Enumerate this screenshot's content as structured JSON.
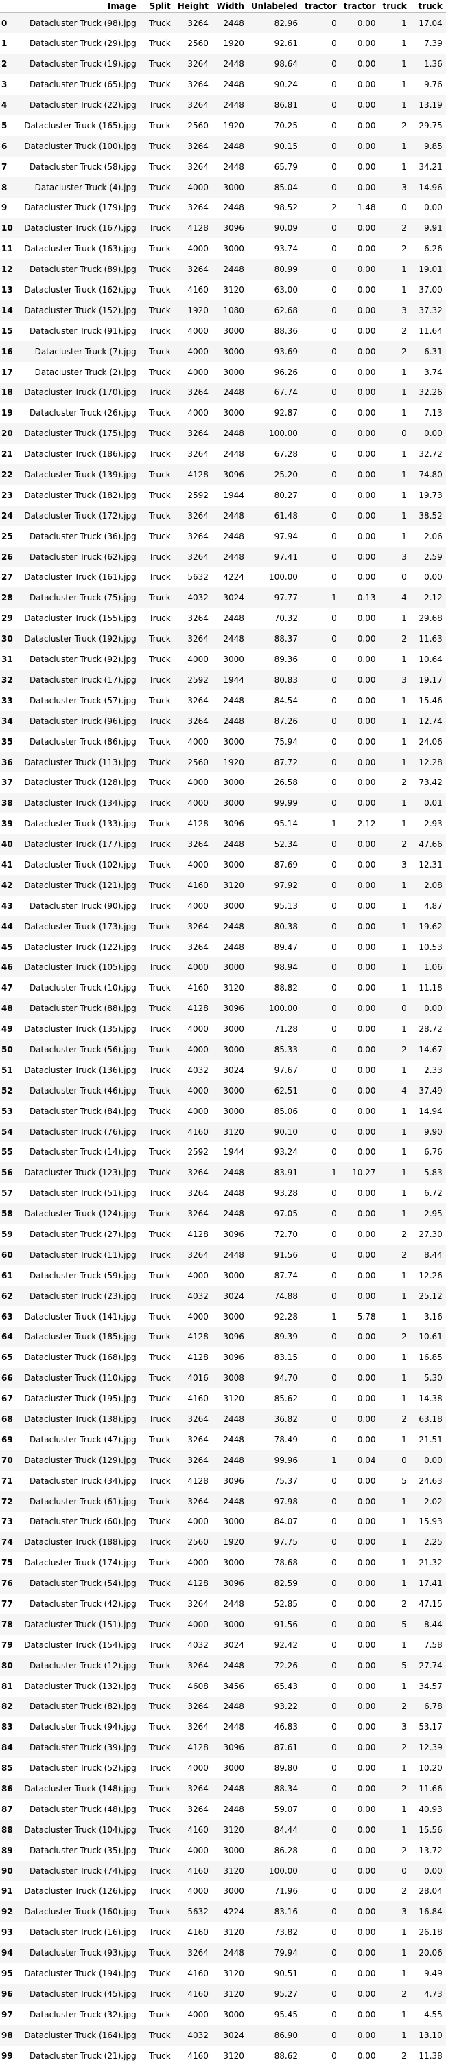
{
  "table": {
    "columns": [
      "",
      "Image",
      "Split",
      "Height",
      "Width",
      "Unlabeled",
      "tractor",
      "tractor",
      "truck",
      "truck"
    ],
    "rows": [
      [
        "0",
        "Datacluster Truck (98).jpg",
        "Truck",
        "3264",
        "2448",
        "82.96",
        "0",
        "0.00",
        "1",
        "17.04"
      ],
      [
        "1",
        "Datacluster Truck (29).jpg",
        "Truck",
        "2560",
        "1920",
        "92.61",
        "0",
        "0.00",
        "1",
        "7.39"
      ],
      [
        "2",
        "Datacluster Truck (19).jpg",
        "Truck",
        "3264",
        "2448",
        "98.64",
        "0",
        "0.00",
        "1",
        "1.36"
      ],
      [
        "3",
        "Datacluster Truck (65).jpg",
        "Truck",
        "3264",
        "2448",
        "90.24",
        "0",
        "0.00",
        "1",
        "9.76"
      ],
      [
        "4",
        "Datacluster Truck (22).jpg",
        "Truck",
        "3264",
        "2448",
        "86.81",
        "0",
        "0.00",
        "1",
        "13.19"
      ],
      [
        "5",
        "Datacluster Truck (165).jpg",
        "Truck",
        "2560",
        "1920",
        "70.25",
        "0",
        "0.00",
        "2",
        "29.75"
      ],
      [
        "6",
        "Datacluster Truck (100).jpg",
        "Truck",
        "3264",
        "2448",
        "90.15",
        "0",
        "0.00",
        "1",
        "9.85"
      ],
      [
        "7",
        "Datacluster Truck (58).jpg",
        "Truck",
        "3264",
        "2448",
        "65.79",
        "0",
        "0.00",
        "1",
        "34.21"
      ],
      [
        "8",
        "Datacluster Truck (4).jpg",
        "Truck",
        "4000",
        "3000",
        "85.04",
        "0",
        "0.00",
        "3",
        "14.96"
      ],
      [
        "9",
        "Datacluster Truck (179).jpg",
        "Truck",
        "3264",
        "2448",
        "98.52",
        "2",
        "1.48",
        "0",
        "0.00"
      ],
      [
        "10",
        "Datacluster Truck (167).jpg",
        "Truck",
        "4128",
        "3096",
        "90.09",
        "0",
        "0.00",
        "2",
        "9.91"
      ],
      [
        "11",
        "Datacluster Truck (163).jpg",
        "Truck",
        "4000",
        "3000",
        "93.74",
        "0",
        "0.00",
        "2",
        "6.26"
      ],
      [
        "12",
        "Datacluster Truck (89).jpg",
        "Truck",
        "3264",
        "2448",
        "80.99",
        "0",
        "0.00",
        "1",
        "19.01"
      ],
      [
        "13",
        "Datacluster Truck (162).jpg",
        "Truck",
        "4160",
        "3120",
        "63.00",
        "0",
        "0.00",
        "1",
        "37.00"
      ],
      [
        "14",
        "Datacluster Truck (152).jpg",
        "Truck",
        "1920",
        "1080",
        "62.68",
        "0",
        "0.00",
        "3",
        "37.32"
      ],
      [
        "15",
        "Datacluster Truck (91).jpg",
        "Truck",
        "4000",
        "3000",
        "88.36",
        "0",
        "0.00",
        "2",
        "11.64"
      ],
      [
        "16",
        "Datacluster Truck (7).jpg",
        "Truck",
        "4000",
        "3000",
        "93.69",
        "0",
        "0.00",
        "2",
        "6.31"
      ],
      [
        "17",
        "Datacluster Truck (2).jpg",
        "Truck",
        "4000",
        "3000",
        "96.26",
        "0",
        "0.00",
        "1",
        "3.74"
      ],
      [
        "18",
        "Datacluster Truck (170).jpg",
        "Truck",
        "3264",
        "2448",
        "67.74",
        "0",
        "0.00",
        "1",
        "32.26"
      ],
      [
        "19",
        "Datacluster Truck (26).jpg",
        "Truck",
        "4000",
        "3000",
        "92.87",
        "0",
        "0.00",
        "1",
        "7.13"
      ],
      [
        "20",
        "Datacluster Truck (175).jpg",
        "Truck",
        "3264",
        "2448",
        "100.00",
        "0",
        "0.00",
        "0",
        "0.00"
      ],
      [
        "21",
        "Datacluster Truck (186).jpg",
        "Truck",
        "3264",
        "2448",
        "67.28",
        "0",
        "0.00",
        "1",
        "32.72"
      ],
      [
        "22",
        "Datacluster Truck (139).jpg",
        "Truck",
        "4128",
        "3096",
        "25.20",
        "0",
        "0.00",
        "1",
        "74.80"
      ],
      [
        "23",
        "Datacluster Truck (182).jpg",
        "Truck",
        "2592",
        "1944",
        "80.27",
        "0",
        "0.00",
        "1",
        "19.73"
      ],
      [
        "24",
        "Datacluster Truck (172).jpg",
        "Truck",
        "3264",
        "2448",
        "61.48",
        "0",
        "0.00",
        "1",
        "38.52"
      ],
      [
        "25",
        "Datacluster Truck (36).jpg",
        "Truck",
        "3264",
        "2448",
        "97.94",
        "0",
        "0.00",
        "1",
        "2.06"
      ],
      [
        "26",
        "Datacluster Truck (62).jpg",
        "Truck",
        "3264",
        "2448",
        "97.41",
        "0",
        "0.00",
        "3",
        "2.59"
      ],
      [
        "27",
        "Datacluster Truck (161).jpg",
        "Truck",
        "5632",
        "4224",
        "100.00",
        "0",
        "0.00",
        "0",
        "0.00"
      ],
      [
        "28",
        "Datacluster Truck (75).jpg",
        "Truck",
        "4032",
        "3024",
        "97.77",
        "1",
        "0.13",
        "4",
        "2.12"
      ],
      [
        "29",
        "Datacluster Truck (155).jpg",
        "Truck",
        "3264",
        "2448",
        "70.32",
        "0",
        "0.00",
        "1",
        "29.68"
      ],
      [
        "30",
        "Datacluster Truck (192).jpg",
        "Truck",
        "3264",
        "2448",
        "88.37",
        "0",
        "0.00",
        "2",
        "11.63"
      ],
      [
        "31",
        "Datacluster Truck (92).jpg",
        "Truck",
        "4000",
        "3000",
        "89.36",
        "0",
        "0.00",
        "1",
        "10.64"
      ],
      [
        "32",
        "Datacluster Truck (17).jpg",
        "Truck",
        "2592",
        "1944",
        "80.83",
        "0",
        "0.00",
        "3",
        "19.17"
      ],
      [
        "33",
        "Datacluster Truck (57).jpg",
        "Truck",
        "3264",
        "2448",
        "84.54",
        "0",
        "0.00",
        "1",
        "15.46"
      ],
      [
        "34",
        "Datacluster Truck (96).jpg",
        "Truck",
        "3264",
        "2448",
        "87.26",
        "0",
        "0.00",
        "1",
        "12.74"
      ],
      [
        "35",
        "Datacluster Truck (86).jpg",
        "Truck",
        "4000",
        "3000",
        "75.94",
        "0",
        "0.00",
        "1",
        "24.06"
      ],
      [
        "36",
        "Datacluster Truck (113).jpg",
        "Truck",
        "2560",
        "1920",
        "87.72",
        "0",
        "0.00",
        "1",
        "12.28"
      ],
      [
        "37",
        "Datacluster Truck (128).jpg",
        "Truck",
        "4000",
        "3000",
        "26.58",
        "0",
        "0.00",
        "2",
        "73.42"
      ],
      [
        "38",
        "Datacluster Truck (134).jpg",
        "Truck",
        "4000",
        "3000",
        "99.99",
        "0",
        "0.00",
        "1",
        "0.01"
      ],
      [
        "39",
        "Datacluster Truck (133).jpg",
        "Truck",
        "4128",
        "3096",
        "95.14",
        "1",
        "2.12",
        "1",
        "2.93"
      ],
      [
        "40",
        "Datacluster Truck (177).jpg",
        "Truck",
        "3264",
        "2448",
        "52.34",
        "0",
        "0.00",
        "2",
        "47.66"
      ],
      [
        "41",
        "Datacluster Truck (102).jpg",
        "Truck",
        "4000",
        "3000",
        "87.69",
        "0",
        "0.00",
        "3",
        "12.31"
      ],
      [
        "42",
        "Datacluster Truck (121).jpg",
        "Truck",
        "4160",
        "3120",
        "97.92",
        "0",
        "0.00",
        "1",
        "2.08"
      ],
      [
        "43",
        "Datacluster Truck (90).jpg",
        "Truck",
        "4000",
        "3000",
        "95.13",
        "0",
        "0.00",
        "1",
        "4.87"
      ],
      [
        "44",
        "Datacluster Truck (173).jpg",
        "Truck",
        "3264",
        "2448",
        "80.38",
        "0",
        "0.00",
        "1",
        "19.62"
      ],
      [
        "45",
        "Datacluster Truck (122).jpg",
        "Truck",
        "3264",
        "2448",
        "89.47",
        "0",
        "0.00",
        "1",
        "10.53"
      ],
      [
        "46",
        "Datacluster Truck (105).jpg",
        "Truck",
        "4000",
        "3000",
        "98.94",
        "0",
        "0.00",
        "1",
        "1.06"
      ],
      [
        "47",
        "Datacluster Truck (10).jpg",
        "Truck",
        "4160",
        "3120",
        "88.82",
        "0",
        "0.00",
        "1",
        "11.18"
      ],
      [
        "48",
        "Datacluster Truck (88).jpg",
        "Truck",
        "4128",
        "3096",
        "100.00",
        "0",
        "0.00",
        "0",
        "0.00"
      ],
      [
        "49",
        "Datacluster Truck (135).jpg",
        "Truck",
        "4000",
        "3000",
        "71.28",
        "0",
        "0.00",
        "1",
        "28.72"
      ],
      [
        "50",
        "Datacluster Truck (56).jpg",
        "Truck",
        "4000",
        "3000",
        "85.33",
        "0",
        "0.00",
        "2",
        "14.67"
      ],
      [
        "51",
        "Datacluster Truck (136).jpg",
        "Truck",
        "4032",
        "3024",
        "97.67",
        "0",
        "0.00",
        "1",
        "2.33"
      ],
      [
        "52",
        "Datacluster Truck (46).jpg",
        "Truck",
        "4000",
        "3000",
        "62.51",
        "0",
        "0.00",
        "4",
        "37.49"
      ],
      [
        "53",
        "Datacluster Truck (84).jpg",
        "Truck",
        "4000",
        "3000",
        "85.06",
        "0",
        "0.00",
        "1",
        "14.94"
      ],
      [
        "54",
        "Datacluster Truck (76).jpg",
        "Truck",
        "4160",
        "3120",
        "90.10",
        "0",
        "0.00",
        "1",
        "9.90"
      ],
      [
        "55",
        "Datacluster Truck (14).jpg",
        "Truck",
        "2592",
        "1944",
        "93.24",
        "0",
        "0.00",
        "1",
        "6.76"
      ],
      [
        "56",
        "Datacluster Truck (123).jpg",
        "Truck",
        "3264",
        "2448",
        "83.91",
        "1",
        "10.27",
        "1",
        "5.83"
      ],
      [
        "57",
        "Datacluster Truck (51).jpg",
        "Truck",
        "3264",
        "2448",
        "93.28",
        "0",
        "0.00",
        "1",
        "6.72"
      ],
      [
        "58",
        "Datacluster Truck (124).jpg",
        "Truck",
        "3264",
        "2448",
        "97.05",
        "0",
        "0.00",
        "1",
        "2.95"
      ],
      [
        "59",
        "Datacluster Truck (27).jpg",
        "Truck",
        "4128",
        "3096",
        "72.70",
        "0",
        "0.00",
        "2",
        "27.30"
      ],
      [
        "60",
        "Datacluster Truck (11).jpg",
        "Truck",
        "3264",
        "2448",
        "91.56",
        "0",
        "0.00",
        "2",
        "8.44"
      ],
      [
        "61",
        "Datacluster Truck (59).jpg",
        "Truck",
        "4000",
        "3000",
        "87.74",
        "0",
        "0.00",
        "1",
        "12.26"
      ],
      [
        "62",
        "Datacluster Truck (23).jpg",
        "Truck",
        "4032",
        "3024",
        "74.88",
        "0",
        "0.00",
        "1",
        "25.12"
      ],
      [
        "63",
        "Datacluster Truck (141).jpg",
        "Truck",
        "4000",
        "3000",
        "92.28",
        "1",
        "5.78",
        "1",
        "3.16"
      ],
      [
        "64",
        "Datacluster Truck (185).jpg",
        "Truck",
        "4128",
        "3096",
        "89.39",
        "0",
        "0.00",
        "2",
        "10.61"
      ],
      [
        "65",
        "Datacluster Truck (168).jpg",
        "Truck",
        "4128",
        "3096",
        "83.15",
        "0",
        "0.00",
        "1",
        "16.85"
      ],
      [
        "66",
        "Datacluster Truck (110).jpg",
        "Truck",
        "4016",
        "3008",
        "94.70",
        "0",
        "0.00",
        "1",
        "5.30"
      ],
      [
        "67",
        "Datacluster Truck (195).jpg",
        "Truck",
        "4160",
        "3120",
        "85.62",
        "0",
        "0.00",
        "1",
        "14.38"
      ],
      [
        "68",
        "Datacluster Truck (138).jpg",
        "Truck",
        "3264",
        "2448",
        "36.82",
        "0",
        "0.00",
        "2",
        "63.18"
      ],
      [
        "69",
        "Datacluster Truck (47).jpg",
        "Truck",
        "3264",
        "2448",
        "78.49",
        "0",
        "0.00",
        "1",
        "21.51"
      ],
      [
        "70",
        "Datacluster Truck (129).jpg",
        "Truck",
        "3264",
        "2448",
        "99.96",
        "1",
        "0.04",
        "0",
        "0.00"
      ],
      [
        "71",
        "Datacluster Truck (34).jpg",
        "Truck",
        "4128",
        "3096",
        "75.37",
        "0",
        "0.00",
        "5",
        "24.63"
      ],
      [
        "72",
        "Datacluster Truck (61).jpg",
        "Truck",
        "3264",
        "2448",
        "97.98",
        "0",
        "0.00",
        "1",
        "2.02"
      ],
      [
        "73",
        "Datacluster Truck (60).jpg",
        "Truck",
        "4000",
        "3000",
        "84.07",
        "0",
        "0.00",
        "1",
        "15.93"
      ],
      [
        "74",
        "Datacluster Truck (188).jpg",
        "Truck",
        "2560",
        "1920",
        "97.75",
        "0",
        "0.00",
        "1",
        "2.25"
      ],
      [
        "75",
        "Datacluster Truck (174).jpg",
        "Truck",
        "4000",
        "3000",
        "78.68",
        "0",
        "0.00",
        "1",
        "21.32"
      ],
      [
        "76",
        "Datacluster Truck (54).jpg",
        "Truck",
        "4128",
        "3096",
        "82.59",
        "0",
        "0.00",
        "1",
        "17.41"
      ],
      [
        "77",
        "Datacluster Truck (42).jpg",
        "Truck",
        "3264",
        "2448",
        "52.85",
        "0",
        "0.00",
        "2",
        "47.15"
      ],
      [
        "78",
        "Datacluster Truck (151).jpg",
        "Truck",
        "4000",
        "3000",
        "91.56",
        "0",
        "0.00",
        "5",
        "8.44"
      ],
      [
        "79",
        "Datacluster Truck (154).jpg",
        "Truck",
        "4032",
        "3024",
        "92.42",
        "0",
        "0.00",
        "1",
        "7.58"
      ],
      [
        "80",
        "Datacluster Truck (12).jpg",
        "Truck",
        "3264",
        "2448",
        "72.26",
        "0",
        "0.00",
        "5",
        "27.74"
      ],
      [
        "81",
        "Datacluster Truck (132).jpg",
        "Truck",
        "4608",
        "3456",
        "65.43",
        "0",
        "0.00",
        "1",
        "34.57"
      ],
      [
        "82",
        "Datacluster Truck (82).jpg",
        "Truck",
        "3264",
        "2448",
        "93.22",
        "0",
        "0.00",
        "2",
        "6.78"
      ],
      [
        "83",
        "Datacluster Truck (94).jpg",
        "Truck",
        "3264",
        "2448",
        "46.83",
        "0",
        "0.00",
        "3",
        "53.17"
      ],
      [
        "84",
        "Datacluster Truck (39).jpg",
        "Truck",
        "4128",
        "3096",
        "87.61",
        "0",
        "0.00",
        "2",
        "12.39"
      ],
      [
        "85",
        "Datacluster Truck (52).jpg",
        "Truck",
        "4000",
        "3000",
        "89.80",
        "0",
        "0.00",
        "1",
        "10.20"
      ],
      [
        "86",
        "Datacluster Truck (148).jpg",
        "Truck",
        "3264",
        "2448",
        "88.34",
        "0",
        "0.00",
        "2",
        "11.66"
      ],
      [
        "87",
        "Datacluster Truck (48).jpg",
        "Truck",
        "3264",
        "2448",
        "59.07",
        "0",
        "0.00",
        "1",
        "40.93"
      ],
      [
        "88",
        "Datacluster Truck (104).jpg",
        "Truck",
        "4160",
        "3120",
        "84.44",
        "0",
        "0.00",
        "1",
        "15.56"
      ],
      [
        "89",
        "Datacluster Truck (35).jpg",
        "Truck",
        "4000",
        "3000",
        "86.28",
        "0",
        "0.00",
        "2",
        "13.72"
      ],
      [
        "90",
        "Datacluster Truck (74).jpg",
        "Truck",
        "4160",
        "3120",
        "100.00",
        "0",
        "0.00",
        "0",
        "0.00"
      ],
      [
        "91",
        "Datacluster Truck (126).jpg",
        "Truck",
        "4000",
        "3000",
        "71.96",
        "0",
        "0.00",
        "2",
        "28.04"
      ],
      [
        "92",
        "Datacluster Truck (160).jpg",
        "Truck",
        "5632",
        "4224",
        "83.16",
        "0",
        "0.00",
        "3",
        "16.84"
      ],
      [
        "93",
        "Datacluster Truck (16).jpg",
        "Truck",
        "4160",
        "3120",
        "73.82",
        "0",
        "0.00",
        "1",
        "26.18"
      ],
      [
        "94",
        "Datacluster Truck (93).jpg",
        "Truck",
        "3264",
        "2448",
        "79.94",
        "0",
        "0.00",
        "1",
        "20.06"
      ],
      [
        "95",
        "Datacluster Truck (194).jpg",
        "Truck",
        "4160",
        "3120",
        "90.51",
        "0",
        "0.00",
        "1",
        "9.49"
      ],
      [
        "96",
        "Datacluster Truck (45).jpg",
        "Truck",
        "4160",
        "3120",
        "95.27",
        "0",
        "0.00",
        "2",
        "4.73"
      ],
      [
        "97",
        "Datacluster Truck (32).jpg",
        "Truck",
        "4000",
        "3000",
        "95.45",
        "0",
        "0.00",
        "1",
        "4.55"
      ],
      [
        "98",
        "Datacluster Truck (164).jpg",
        "Truck",
        "4032",
        "3024",
        "86.90",
        "0",
        "0.00",
        "1",
        "13.10"
      ],
      [
        "99",
        "Datacluster Truck (21).jpg",
        "Truck",
        "4160",
        "3120",
        "88.62",
        "0",
        "0.00",
        "2",
        "11.38"
      ]
    ]
  }
}
